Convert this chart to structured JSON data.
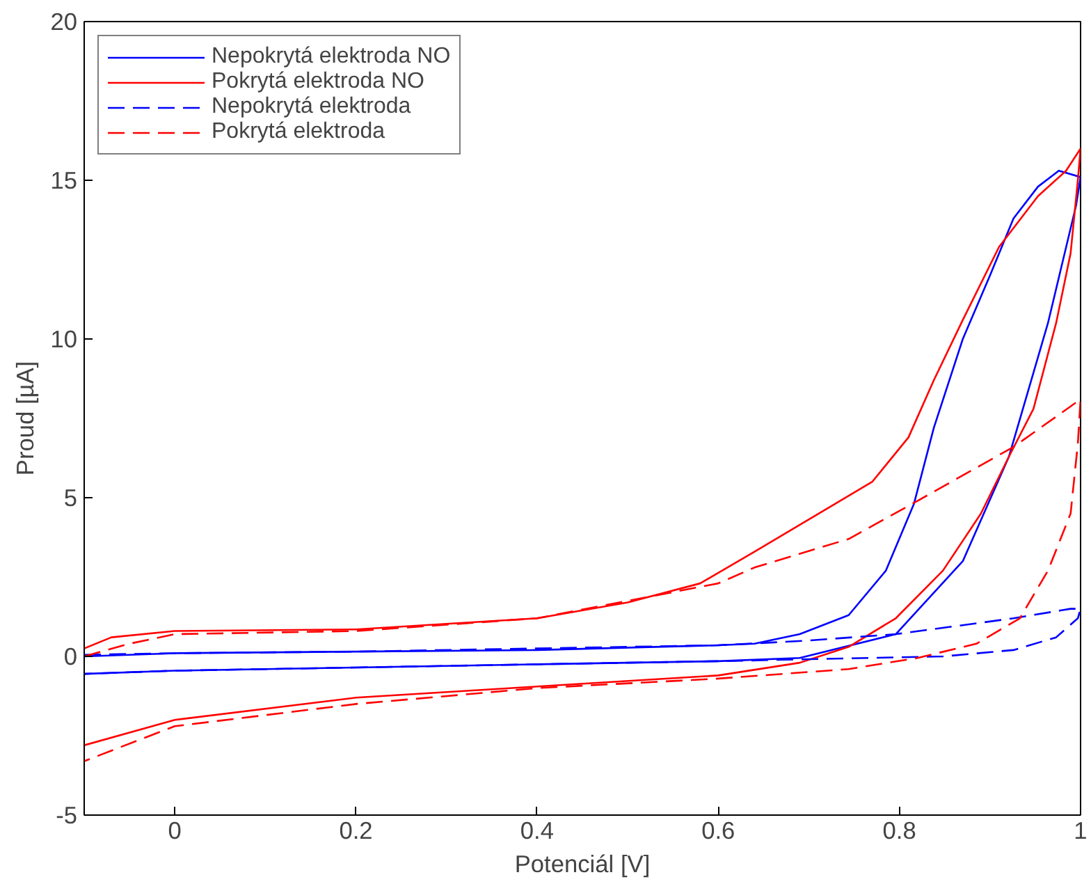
{
  "chart_data": {
    "type": "line",
    "xlabel": "Potenciál [V]",
    "ylabel": "Proud [µA]",
    "xlim": [
      -0.1,
      1.0
    ],
    "ylim": [
      -5,
      20
    ],
    "xticks": [
      0,
      0.2,
      0.4,
      0.6,
      0.8,
      1
    ],
    "yticks": [
      -5,
      0,
      5,
      10,
      15,
      20
    ],
    "grid": false,
    "legend": "top left",
    "marker": "none",
    "series": [
      {
        "name": "Nepokrytá elektroda NO",
        "color": "#0000ff",
        "line_style": "solid",
        "x": [
          -0.1,
          0,
          0.2,
          0.4,
          0.6,
          0.69,
          0.796,
          0.87,
          0.921,
          0.964,
          0.995,
          1.0,
          0.976,
          0.953,
          0.926,
          0.9,
          0.87,
          0.838,
          0.816,
          0.785,
          0.744,
          0.69,
          0.64,
          0.6,
          0.4,
          0.2,
          0,
          -0.1
        ],
        "values": [
          -0.55,
          -0.45,
          -0.35,
          -0.25,
          -0.15,
          -0.05,
          0.7,
          3.0,
          6.3,
          10.5,
          14.2,
          15.1,
          15.3,
          14.8,
          13.8,
          12.0,
          10.0,
          7.2,
          4.8,
          2.7,
          1.3,
          0.7,
          0.4,
          0.35,
          0.2,
          0.15,
          0.1,
          0.0
        ]
      },
      {
        "name": "Pokrytá elektroda NO",
        "color": "#ff0000",
        "line_style": "solid",
        "x": [
          -0.1,
          -0.07,
          0,
          0.2,
          0.4,
          0.5,
          0.58,
          0.64,
          0.717,
          0.77,
          0.81,
          0.838,
          0.87,
          0.91,
          0.953,
          0.984,
          1.0,
          0.997,
          0.989,
          0.973,
          0.948,
          0.921,
          0.89,
          0.848,
          0.796,
          0.744,
          0.69,
          0.6,
          0.4,
          0.2,
          0,
          -0.1
        ],
        "values": [
          0.25,
          0.6,
          0.8,
          0.85,
          1.2,
          1.7,
          2.3,
          3.3,
          4.6,
          5.5,
          6.9,
          8.7,
          10.6,
          12.9,
          14.5,
          15.3,
          16.0,
          15.0,
          12.7,
          10.5,
          7.8,
          6.3,
          4.5,
          2.7,
          1.2,
          0.3,
          -0.2,
          -0.6,
          -0.95,
          -1.3,
          -2.0,
          -2.8
        ]
      },
      {
        "name": "Nepokrytá elektroda",
        "color": "#0000ff",
        "line_style": "dashed",
        "x": [
          -0.1,
          0,
          0.2,
          0.4,
          0.6,
          0.7,
          0.796,
          0.926,
          0.989,
          1.0,
          0.997,
          0.973,
          0.926,
          0.848,
          0.6,
          0.4,
          0.2,
          0,
          -0.1
        ],
        "values": [
          0.05,
          0.1,
          0.15,
          0.25,
          0.35,
          0.5,
          0.7,
          1.2,
          1.5,
          1.5,
          1.2,
          0.6,
          0.2,
          0.0,
          -0.15,
          -0.25,
          -0.35,
          -0.45,
          -0.55
        ]
      },
      {
        "name": "Pokrytá elektroda",
        "color": "#ff0000",
        "line_style": "dashed",
        "x": [
          -0.1,
          -0.05,
          0,
          0.2,
          0.4,
          0.6,
          0.64,
          0.744,
          0.82,
          0.926,
          1.0,
          0.997,
          0.989,
          0.964,
          0.933,
          0.885,
          0.82,
          0.744,
          0.6,
          0.4,
          0.2,
          0,
          -0.1
        ],
        "values": [
          0.0,
          0.4,
          0.7,
          0.8,
          1.2,
          2.3,
          2.8,
          3.7,
          4.9,
          6.6,
          8.1,
          6.7,
          4.5,
          2.7,
          1.2,
          0.4,
          -0.05,
          -0.4,
          -0.7,
          -1.0,
          -1.5,
          -2.2,
          -3.3
        ]
      }
    ]
  }
}
